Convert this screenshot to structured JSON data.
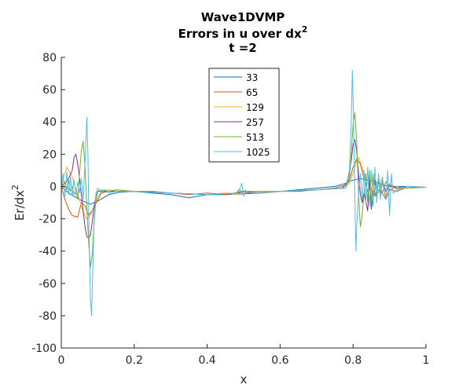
{
  "chart_data": {
    "type": "line",
    "title_line1": "Wave1DVMP",
    "title_line2": "Errors in u over dx",
    "title_line2_sup": "2",
    "title_line3": "t =2",
    "xlabel": "x",
    "ylabel": "Er/dx",
    "ylabel_sup": "2",
    "xlim": [
      0,
      1
    ],
    "ylim": [
      -100,
      80
    ],
    "xticks": [
      0,
      0.2,
      0.4,
      0.6,
      0.8,
      1
    ],
    "xtick_labels": [
      "0",
      "0.2",
      "0.4",
      "0.6",
      "0.8",
      "1"
    ],
    "yticks": [
      -100,
      -80,
      -60,
      -40,
      -20,
      0,
      20,
      40,
      60,
      80
    ],
    "ytick_labels": [
      "-100",
      "-80",
      "-60",
      "-40",
      "-20",
      "0",
      "20",
      "40",
      "60",
      "80"
    ],
    "legend_placement": "top-center",
    "grid": false,
    "series": [
      {
        "name": "33",
        "color": "#0072BD",
        "points": [
          [
            0,
            0
          ],
          [
            0.02,
            -4
          ],
          [
            0.05,
            -8
          ],
          [
            0.08,
            -11
          ],
          [
            0.1,
            -9
          ],
          [
            0.13,
            -5
          ],
          [
            0.16,
            -3.5
          ],
          [
            0.2,
            -3
          ],
          [
            0.25,
            -4
          ],
          [
            0.3,
            -5
          ],
          [
            0.35,
            -7
          ],
          [
            0.4,
            -5
          ],
          [
            0.45,
            -5
          ],
          [
            0.5,
            -4.5
          ],
          [
            0.55,
            -4
          ],
          [
            0.6,
            -3
          ],
          [
            0.65,
            -2
          ],
          [
            0.7,
            -1
          ],
          [
            0.75,
            0
          ],
          [
            0.78,
            2
          ],
          [
            0.8,
            4
          ],
          [
            0.82,
            5
          ],
          [
            0.84,
            4
          ],
          [
            0.86,
            3
          ],
          [
            0.88,
            1
          ],
          [
            0.9,
            0
          ],
          [
            0.93,
            0
          ],
          [
            0.96,
            0
          ],
          [
            1,
            -0.5
          ]
        ]
      },
      {
        "name": "65",
        "color": "#D95319",
        "points": [
          [
            0,
            0
          ],
          [
            0.01,
            -8
          ],
          [
            0.02,
            -14
          ],
          [
            0.03,
            -18
          ],
          [
            0.045,
            -19
          ],
          [
            0.055,
            -10
          ],
          [
            0.065,
            -12
          ],
          [
            0.075,
            -18
          ],
          [
            0.09,
            -13
          ],
          [
            0.1,
            -8
          ],
          [
            0.11,
            -4
          ],
          [
            0.13,
            -3
          ],
          [
            0.15,
            -2
          ],
          [
            0.2,
            -3
          ],
          [
            0.25,
            -3
          ],
          [
            0.3,
            -4
          ],
          [
            0.35,
            -5
          ],
          [
            0.4,
            -4
          ],
          [
            0.45,
            -5
          ],
          [
            0.5,
            -3
          ],
          [
            0.55,
            -4
          ],
          [
            0.6,
            -3
          ],
          [
            0.65,
            -3
          ],
          [
            0.7,
            -2
          ],
          [
            0.75,
            -1
          ],
          [
            0.78,
            1
          ],
          [
            0.79,
            4
          ],
          [
            0.8,
            12
          ],
          [
            0.81,
            17
          ],
          [
            0.82,
            14
          ],
          [
            0.83,
            5
          ],
          [
            0.84,
            -3
          ],
          [
            0.85,
            -1
          ],
          [
            0.86,
            -6
          ],
          [
            0.87,
            -2
          ],
          [
            0.88,
            -4
          ],
          [
            0.89,
            -8
          ],
          [
            0.9,
            -2
          ],
          [
            0.92,
            -3
          ],
          [
            0.94,
            -1
          ],
          [
            0.97,
            -0.5
          ],
          [
            1,
            -0.5
          ]
        ]
      },
      {
        "name": "129",
        "color": "#EDB120",
        "points": [
          [
            0,
            0
          ],
          [
            0.01,
            8
          ],
          [
            0.015,
            12
          ],
          [
            0.02,
            10
          ],
          [
            0.03,
            6
          ],
          [
            0.04,
            -2
          ],
          [
            0.05,
            -8
          ],
          [
            0.06,
            -16
          ],
          [
            0.07,
            -20
          ],
          [
            0.08,
            -18
          ],
          [
            0.09,
            -12
          ],
          [
            0.1,
            -7
          ],
          [
            0.11,
            -3
          ],
          [
            0.13,
            -2
          ],
          [
            0.15,
            -3
          ],
          [
            0.2,
            -3
          ],
          [
            0.3,
            -4
          ],
          [
            0.4,
            -5
          ],
          [
            0.45,
            -4
          ],
          [
            0.48,
            -5
          ],
          [
            0.5,
            -3
          ],
          [
            0.52,
            -4
          ],
          [
            0.55,
            -4
          ],
          [
            0.6,
            -3
          ],
          [
            0.7,
            -2
          ],
          [
            0.77,
            -1
          ],
          [
            0.79,
            2
          ],
          [
            0.8,
            8
          ],
          [
            0.81,
            16
          ],
          [
            0.815,
            18
          ],
          [
            0.82,
            15
          ],
          [
            0.83,
            8
          ],
          [
            0.84,
            2
          ],
          [
            0.85,
            -3
          ],
          [
            0.86,
            5
          ],
          [
            0.87,
            -4
          ],
          [
            0.88,
            6
          ],
          [
            0.89,
            -7
          ],
          [
            0.9,
            2
          ],
          [
            0.92,
            -2
          ],
          [
            0.95,
            0
          ],
          [
            1,
            -0.5
          ]
        ]
      },
      {
        "name": "257",
        "color": "#7E2F8E",
        "points": [
          [
            0,
            0
          ],
          [
            0.01,
            2
          ],
          [
            0.02,
            5
          ],
          [
            0.03,
            10
          ],
          [
            0.035,
            18
          ],
          [
            0.04,
            20
          ],
          [
            0.045,
            14
          ],
          [
            0.05,
            5
          ],
          [
            0.055,
            -5
          ],
          [
            0.06,
            -15
          ],
          [
            0.065,
            -25
          ],
          [
            0.07,
            -31
          ],
          [
            0.075,
            -32
          ],
          [
            0.08,
            -30
          ],
          [
            0.085,
            -22
          ],
          [
            0.09,
            -12
          ],
          [
            0.095,
            -6
          ],
          [
            0.1,
            -3
          ],
          [
            0.12,
            -3
          ],
          [
            0.15,
            -3
          ],
          [
            0.2,
            -3
          ],
          [
            0.3,
            -4
          ],
          [
            0.4,
            -5
          ],
          [
            0.48,
            -4
          ],
          [
            0.5,
            -3
          ],
          [
            0.52,
            -4
          ],
          [
            0.6,
            -3
          ],
          [
            0.7,
            -2
          ],
          [
            0.77,
            -1
          ],
          [
            0.785,
            3
          ],
          [
            0.795,
            16
          ],
          [
            0.8,
            26
          ],
          [
            0.805,
            29
          ],
          [
            0.81,
            22
          ],
          [
            0.815,
            8
          ],
          [
            0.82,
            -5
          ],
          [
            0.825,
            -10
          ],
          [
            0.83,
            -4
          ],
          [
            0.84,
            -15
          ],
          [
            0.845,
            4
          ],
          [
            0.85,
            -14
          ],
          [
            0.86,
            4
          ],
          [
            0.865,
            -8
          ],
          [
            0.87,
            6
          ],
          [
            0.875,
            -5
          ],
          [
            0.88,
            3
          ],
          [
            0.89,
            -3
          ],
          [
            0.9,
            1
          ],
          [
            0.92,
            -1
          ],
          [
            0.95,
            0
          ],
          [
            1,
            -0.5
          ]
        ]
      },
      {
        "name": "513",
        "color": "#77AC30",
        "points": [
          [
            0,
            0
          ],
          [
            0.01,
            3
          ],
          [
            0.015,
            -2
          ],
          [
            0.02,
            4
          ],
          [
            0.025,
            -3
          ],
          [
            0.03,
            0
          ],
          [
            0.035,
            -5
          ],
          [
            0.04,
            -3
          ],
          [
            0.045,
            -8
          ],
          [
            0.05,
            8
          ],
          [
            0.055,
            22
          ],
          [
            0.06,
            28
          ],
          [
            0.065,
            12
          ],
          [
            0.07,
            -12
          ],
          [
            0.075,
            -35
          ],
          [
            0.08,
            -50
          ],
          [
            0.085,
            -42
          ],
          [
            0.09,
            -22
          ],
          [
            0.095,
            -8
          ],
          [
            0.1,
            -3
          ],
          [
            0.11,
            -2
          ],
          [
            0.13,
            -3
          ],
          [
            0.15,
            -2
          ],
          [
            0.2,
            -3
          ],
          [
            0.3,
            -4
          ],
          [
            0.4,
            -5
          ],
          [
            0.48,
            -4
          ],
          [
            0.49,
            -2
          ],
          [
            0.5,
            -5
          ],
          [
            0.51,
            -3
          ],
          [
            0.6,
            -3
          ],
          [
            0.7,
            -2
          ],
          [
            0.78,
            -1
          ],
          [
            0.79,
            5
          ],
          [
            0.795,
            20
          ],
          [
            0.8,
            38
          ],
          [
            0.805,
            46
          ],
          [
            0.81,
            28
          ],
          [
            0.815,
            -5
          ],
          [
            0.82,
            -25
          ],
          [
            0.825,
            -18
          ],
          [
            0.83,
            -5
          ],
          [
            0.835,
            8
          ],
          [
            0.84,
            -10
          ],
          [
            0.845,
            10
          ],
          [
            0.85,
            -10
          ],
          [
            0.855,
            8
          ],
          [
            0.86,
            -6
          ],
          [
            0.87,
            5
          ],
          [
            0.88,
            -4
          ],
          [
            0.89,
            3
          ],
          [
            0.9,
            -2
          ],
          [
            0.92,
            0
          ],
          [
            0.95,
            -1
          ],
          [
            1,
            -0.5
          ]
        ]
      },
      {
        "name": "1025",
        "color": "#4DBEEE",
        "points": [
          [
            0,
            0
          ],
          [
            0.005,
            8
          ],
          [
            0.01,
            -6
          ],
          [
            0.015,
            9
          ],
          [
            0.02,
            -5
          ],
          [
            0.025,
            6
          ],
          [
            0.03,
            -6
          ],
          [
            0.035,
            4
          ],
          [
            0.04,
            -5
          ],
          [
            0.045,
            3
          ],
          [
            0.05,
            -4
          ],
          [
            0.055,
            5
          ],
          [
            0.06,
            -8
          ],
          [
            0.065,
            15
          ],
          [
            0.07,
            43
          ],
          [
            0.073,
            20
          ],
          [
            0.076,
            -30
          ],
          [
            0.08,
            -70
          ],
          [
            0.083,
            -80
          ],
          [
            0.086,
            -55
          ],
          [
            0.09,
            -20
          ],
          [
            0.095,
            -4
          ],
          [
            0.1,
            -1
          ],
          [
            0.11,
            -4
          ],
          [
            0.12,
            -2
          ],
          [
            0.13,
            -4
          ],
          [
            0.15,
            -3
          ],
          [
            0.2,
            -3
          ],
          [
            0.3,
            -4
          ],
          [
            0.4,
            -5
          ],
          [
            0.48,
            -4
          ],
          [
            0.49,
            -1
          ],
          [
            0.495,
            2
          ],
          [
            0.5,
            -6
          ],
          [
            0.505,
            -2
          ],
          [
            0.51,
            -4
          ],
          [
            0.6,
            -3
          ],
          [
            0.7,
            -2
          ],
          [
            0.78,
            -1
          ],
          [
            0.79,
            10
          ],
          [
            0.795,
            40
          ],
          [
            0.798,
            72
          ],
          [
            0.8,
            55
          ],
          [
            0.803,
            20
          ],
          [
            0.806,
            -20
          ],
          [
            0.808,
            -40
          ],
          [
            0.81,
            -25
          ],
          [
            0.815,
            -5
          ],
          [
            0.82,
            8
          ],
          [
            0.825,
            -8
          ],
          [
            0.83,
            10
          ],
          [
            0.835,
            -10
          ],
          [
            0.84,
            12
          ],
          [
            0.845,
            -12
          ],
          [
            0.85,
            10
          ],
          [
            0.855,
            -12
          ],
          [
            0.86,
            12
          ],
          [
            0.865,
            -10
          ],
          [
            0.87,
            8
          ],
          [
            0.875,
            -8
          ],
          [
            0.88,
            5
          ],
          [
            0.885,
            -3
          ],
          [
            0.89,
            -8
          ],
          [
            0.895,
            10
          ],
          [
            0.9,
            -18
          ],
          [
            0.905,
            8
          ],
          [
            0.91,
            -4
          ],
          [
            0.93,
            -1
          ],
          [
            0.95,
            0
          ],
          [
            1,
            -0.5
          ]
        ]
      }
    ]
  }
}
